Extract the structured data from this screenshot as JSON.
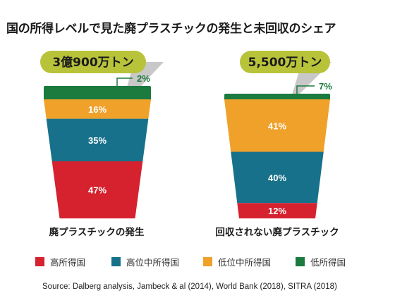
{
  "title": "国の所得レベルで見た廃プラスチックの発生と未回収のシェア",
  "colors": {
    "high": "#d5222e",
    "upper_middle": "#17718a",
    "lower_middle": "#f0a12a",
    "low": "#1b7a3e",
    "bubble": "#b8c33a",
    "straw": "#c8c8c8"
  },
  "legend": [
    {
      "key": "high",
      "label": "高所得国"
    },
    {
      "key": "upper_middle",
      "label": "高位中所得国"
    },
    {
      "key": "lower_middle",
      "label": "低位中所得国"
    },
    {
      "key": "low",
      "label": "低所得国"
    }
  ],
  "chart_data": [
    {
      "type": "stacked-bar",
      "name": "廃プラスチックの発生",
      "total_label": "3億900万トン",
      "segments": [
        {
          "key": "low",
          "value": 2,
          "label": "2%"
        },
        {
          "key": "lower_middle",
          "value": 16,
          "label": "16%"
        },
        {
          "key": "upper_middle",
          "value": 35,
          "label": "35%"
        },
        {
          "key": "high",
          "value": 47,
          "label": "47%"
        }
      ]
    },
    {
      "type": "stacked-bar",
      "name": "回収されない廃プラスチック",
      "total_label": "5,500万トン",
      "segments": [
        {
          "key": "low",
          "value": 7,
          "label": "7%"
        },
        {
          "key": "lower_middle",
          "value": 41,
          "label": "41%"
        },
        {
          "key": "upper_middle",
          "value": 40,
          "label": "40%"
        },
        {
          "key": "high",
          "value": 12,
          "label": "12%"
        }
      ]
    }
  ],
  "source": "Source: Dalberg analysis, Jambeck & al (2014), World Bank (2018), SITRA (2018)"
}
